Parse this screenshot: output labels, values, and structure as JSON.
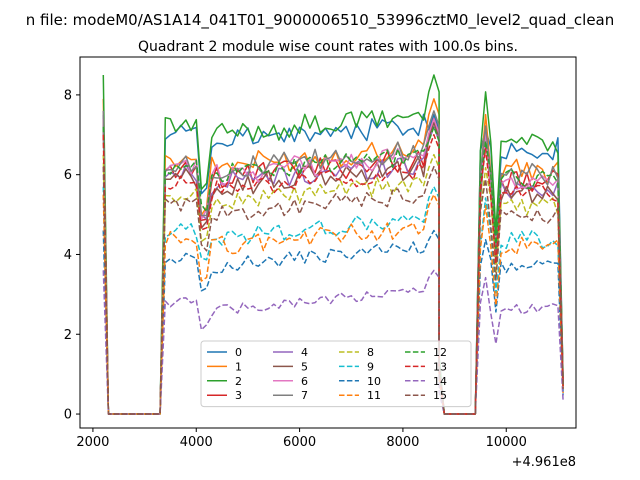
{
  "figure": {
    "suptitle": "n file: modeM0/AS1A14_041T01_9000006510_53996cztM0_level2_quad_clean",
    "title": "Quadrant 2 module wise count rates with 100.0s bins.",
    "offset_label": "+4.961e8"
  },
  "chart_data": {
    "type": "line",
    "title": "Quadrant 2 module wise count rates with 100.0s bins.",
    "xlabel": "",
    "ylabel": "",
    "x_offset_label": "+4.961e8",
    "xlim": [
      1750,
      11350
    ],
    "ylim": [
      -0.35,
      8.95
    ],
    "xticks": [
      2000,
      4000,
      6000,
      8000,
      10000
    ],
    "yticks": [
      0,
      2,
      4,
      6,
      8
    ],
    "grid": false,
    "legend": {
      "position": "bottom-center",
      "ncol": 4
    },
    "segments": [
      {
        "x": [
          2200,
          2300,
          2400,
          2500,
          2600,
          2700,
          2800,
          2900,
          3000,
          3100,
          3200,
          3300
        ]
      },
      {
        "x": [
          3300,
          3400,
          3500,
          3600,
          3700,
          3800,
          3900,
          4000,
          4100,
          4200,
          4300,
          4400,
          4500,
          4600,
          4700,
          4800,
          4900,
          5000,
          5100,
          5200,
          5300,
          5400,
          5500,
          5600,
          5700,
          5800,
          5900,
          6000,
          6100,
          6200,
          6300,
          6400,
          6500,
          6600,
          6700,
          6800,
          6900,
          7000,
          7100,
          7200,
          7300,
          7400,
          7500,
          7600,
          7700,
          7800,
          7900,
          8000,
          8100,
          8200,
          8300,
          8400,
          8500,
          8600,
          8700
        ]
      },
      {
        "x": [
          8700,
          8800,
          8900,
          9000,
          9100,
          9200,
          9300,
          9400
        ]
      },
      {
        "x": [
          9400,
          9500,
          9600,
          9700,
          9800,
          9900,
          10000,
          10100,
          10200,
          10300,
          10400,
          10500,
          10600,
          10700,
          10800,
          10900,
          11000,
          11100
        ]
      }
    ],
    "series": [
      {
        "name": "0",
        "color": "#1f77b4",
        "dashed": false,
        "level": 7.0,
        "peak": 7.5,
        "drop": 5.6,
        "wave": 0.25
      },
      {
        "name": "1",
        "color": "#ff7f0e",
        "dashed": false,
        "level": 6.4,
        "peak": 7.9,
        "drop": 5.1,
        "wave": 0.25
      },
      {
        "name": "2",
        "color": "#2ca02c",
        "dashed": false,
        "level": 7.2,
        "peak": 8.5,
        "drop": 5.7,
        "wave": 0.25
      },
      {
        "name": "3",
        "color": "#d62728",
        "dashed": false,
        "level": 6.1,
        "peak": 7.4,
        "drop": 5.0,
        "wave": 0.25
      },
      {
        "name": "4",
        "color": "#9467bd",
        "dashed": false,
        "level": 6.0,
        "peak": 7.2,
        "drop": 4.9,
        "wave": 0.25
      },
      {
        "name": "5",
        "color": "#8c564b",
        "dashed": false,
        "level": 5.9,
        "peak": 7.3,
        "drop": 4.8,
        "wave": 0.25
      },
      {
        "name": "6",
        "color": "#e377c2",
        "dashed": false,
        "level": 6.2,
        "peak": 7.4,
        "drop": 5.0,
        "wave": 0.25
      },
      {
        "name": "7",
        "color": "#7f7f7f",
        "dashed": false,
        "level": 6.3,
        "peak": 7.6,
        "drop": 5.0,
        "wave": 0.25
      },
      {
        "name": "8",
        "color": "#bcbd22",
        "dashed": true,
        "level": 5.5,
        "peak": 6.5,
        "drop": 4.4,
        "wave": 0.2
      },
      {
        "name": "9",
        "color": "#17becf",
        "dashed": true,
        "level": 4.6,
        "peak": 5.7,
        "drop": 3.8,
        "wave": 0.2
      },
      {
        "name": "10",
        "color": "#1f77b4",
        "dashed": true,
        "level": 3.9,
        "peak": 4.6,
        "drop": 3.2,
        "wave": 0.15
      },
      {
        "name": "11",
        "color": "#ff7f0e",
        "dashed": true,
        "level": 4.4,
        "peak": 5.5,
        "drop": 3.4,
        "wave": 0.2
      },
      {
        "name": "12",
        "color": "#2ca02c",
        "dashed": true,
        "level": 6.2,
        "peak": 7.2,
        "drop": 5.2,
        "wave": 0.2
      },
      {
        "name": "13",
        "color": "#d62728",
        "dashed": true,
        "level": 5.8,
        "peak": 7.0,
        "drop": 4.7,
        "wave": 0.2
      },
      {
        "name": "14",
        "color": "#9467bd",
        "dashed": true,
        "level": 2.8,
        "peak": 3.6,
        "drop": 2.2,
        "wave": 0.12
      },
      {
        "name": "15",
        "color": "#8c564b",
        "dashed": true,
        "level": 5.2,
        "peak": 6.2,
        "drop": 4.2,
        "wave": 0.2
      }
    ]
  }
}
